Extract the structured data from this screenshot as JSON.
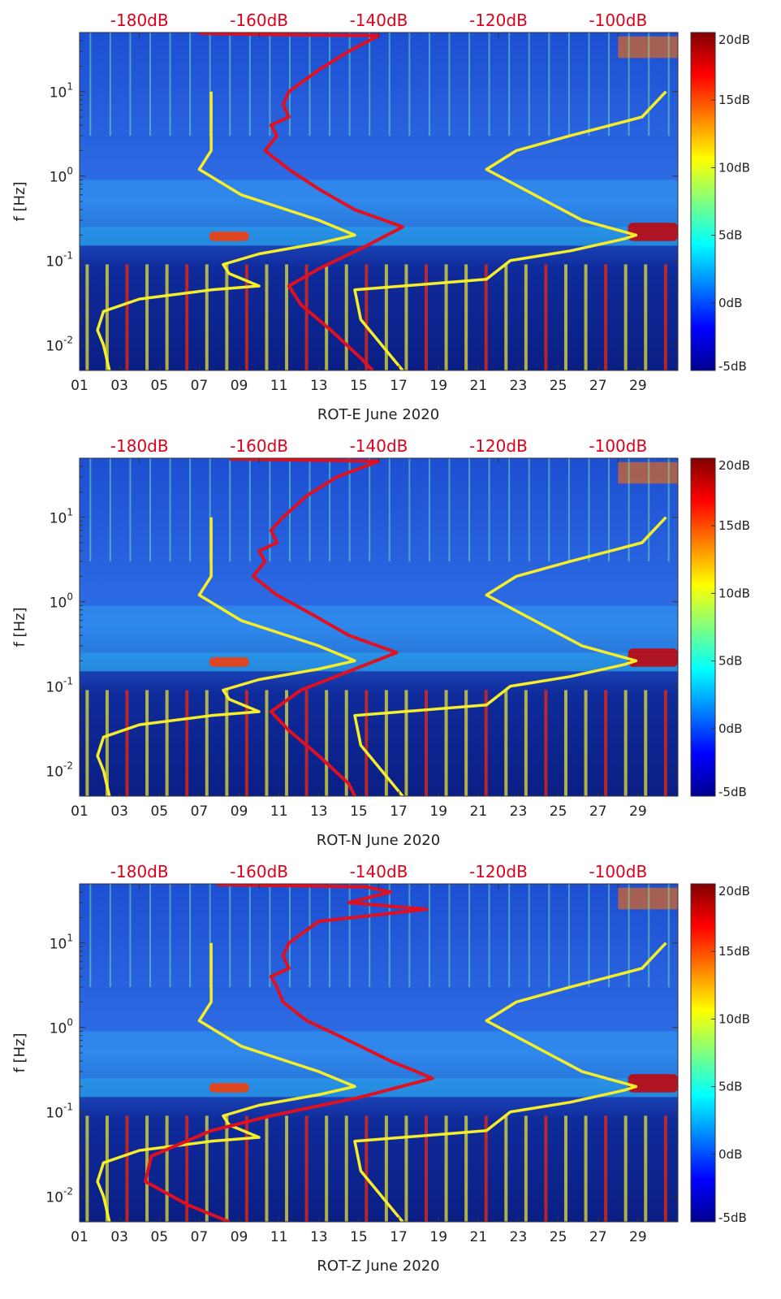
{
  "figure": {
    "colors": {
      "overlay_red": "#e01020",
      "overlay_yellow": "#f6ee2a",
      "background": "#0a2aa8",
      "axis_text": "#222222",
      "top_axis_text": "#e0001a"
    }
  },
  "chart_data": [
    {
      "type": "heatmap",
      "title": "",
      "xlabel": "ROT-E June 2020",
      "ylabel": "f [Hz]",
      "x_ticks": [
        "01",
        "03",
        "05",
        "07",
        "09",
        "11",
        "13",
        "15",
        "17",
        "19",
        "21",
        "23",
        "25",
        "27",
        "29"
      ],
      "x_range_days": [
        1,
        31
      ],
      "y_scale": "log",
      "y_range_hz": [
        0.005,
        50
      ],
      "y_ticks": [
        {
          "base": "10",
          "exp": "-2",
          "value": 0.01
        },
        {
          "base": "10",
          "exp": "-1",
          "value": 0.1
        },
        {
          "base": "10",
          "exp": "0",
          "value": 1
        },
        {
          "base": "10",
          "exp": "1",
          "value": 10
        }
      ],
      "top_axis_labels": [
        "-180dB",
        "-160dB",
        "-140dB",
        "-120dB",
        "-100dB"
      ],
      "top_axis_range_db": [
        -190,
        -90
      ],
      "colorbar": {
        "labels": [
          "20dB",
          "15dB",
          "10dB",
          "5dB",
          "0dB",
          "-5dB"
        ],
        "range_db": [
          -5,
          20
        ]
      },
      "red_curve_db_vs_hz": [
        [
          -170,
          49
        ],
        [
          -165,
          48
        ],
        [
          -155,
          47
        ],
        [
          -140,
          46
        ],
        [
          -145,
          30
        ],
        [
          -150,
          18
        ],
        [
          -155,
          10
        ],
        [
          -156,
          7
        ],
        [
          -155,
          5
        ],
        [
          -158,
          4
        ],
        [
          -157,
          3
        ],
        [
          -159,
          2
        ],
        [
          -155,
          1.2
        ],
        [
          -150,
          0.7
        ],
        [
          -144,
          0.4
        ],
        [
          -136,
          0.25
        ],
        [
          -142,
          0.15
        ],
        [
          -150,
          0.08
        ],
        [
          -155,
          0.05
        ],
        [
          -153,
          0.03
        ],
        [
          -148,
          0.015
        ],
        [
          -143,
          0.007
        ],
        [
          -141,
          0.005
        ]
      ],
      "yellow_curve_low_db_vs_hz": [
        [
          -185,
          0.005
        ],
        [
          -186,
          0.01
        ],
        [
          -187,
          0.015
        ],
        [
          -186,
          0.025
        ],
        [
          -180,
          0.035
        ],
        [
          -168,
          0.045
        ],
        [
          -160,
          0.05
        ],
        [
          -165,
          0.07
        ],
        [
          -166,
          0.09
        ],
        [
          -160,
          0.12
        ],
        [
          -150,
          0.16
        ],
        [
          -144,
          0.2
        ],
        [
          -150,
          0.3
        ],
        [
          -163,
          0.6
        ],
        [
          -170,
          1.2
        ],
        [
          -168,
          2
        ],
        [
          -168,
          4
        ],
        [
          -168,
          10
        ]
      ],
      "yellow_curve_high_db_vs_hz": [
        [
          -136,
          0.005
        ],
        [
          -143,
          0.02
        ],
        [
          -144,
          0.045
        ],
        [
          -122,
          0.06
        ],
        [
          -118,
          0.1
        ],
        [
          -108,
          0.13
        ],
        [
          -99,
          0.18
        ],
        [
          -97,
          0.2
        ],
        [
          -106,
          0.3
        ],
        [
          -122,
          1.2
        ],
        [
          -117,
          2
        ],
        [
          -108,
          3
        ],
        [
          -96,
          5
        ],
        [
          -92,
          10
        ]
      ]
    },
    {
      "type": "heatmap",
      "title": "",
      "xlabel": "ROT-N June 2020",
      "ylabel": "f [Hz]",
      "x_ticks": [
        "01",
        "03",
        "05",
        "07",
        "09",
        "11",
        "13",
        "15",
        "17",
        "19",
        "21",
        "23",
        "25",
        "27",
        "29"
      ],
      "x_range_days": [
        1,
        31
      ],
      "y_scale": "log",
      "y_range_hz": [
        0.005,
        50
      ],
      "y_ticks": [
        {
          "base": "10",
          "exp": "-2",
          "value": 0.01
        },
        {
          "base": "10",
          "exp": "-1",
          "value": 0.1
        },
        {
          "base": "10",
          "exp": "0",
          "value": 1
        },
        {
          "base": "10",
          "exp": "1",
          "value": 10
        }
      ],
      "top_axis_labels": [
        "-180dB",
        "-160dB",
        "-140dB",
        "-120dB",
        "-100dB"
      ],
      "top_axis_range_db": [
        -190,
        -90
      ],
      "colorbar": {
        "labels": [
          "20dB",
          "15dB",
          "10dB",
          "5dB",
          "0dB",
          "-5dB"
        ],
        "range_db": [
          -5,
          20
        ]
      },
      "red_curve_db_vs_hz": [
        [
          -165,
          49
        ],
        [
          -158,
          48
        ],
        [
          -148,
          47
        ],
        [
          -140,
          46
        ],
        [
          -147,
          30
        ],
        [
          -152,
          18
        ],
        [
          -156,
          10
        ],
        [
          -158,
          7
        ],
        [
          -157,
          5
        ],
        [
          -160,
          4
        ],
        [
          -159,
          3
        ],
        [
          -161,
          2
        ],
        [
          -157,
          1.2
        ],
        [
          -151,
          0.7
        ],
        [
          -145,
          0.4
        ],
        [
          -137,
          0.25
        ],
        [
          -145,
          0.15
        ],
        [
          -153,
          0.09
        ],
        [
          -158,
          0.05
        ],
        [
          -155,
          0.03
        ],
        [
          -150,
          0.015
        ],
        [
          -145,
          0.007
        ],
        [
          -144,
          0.005
        ]
      ],
      "yellow_curve_low_db_vs_hz": [
        [
          -185,
          0.005
        ],
        [
          -186,
          0.01
        ],
        [
          -187,
          0.015
        ],
        [
          -186,
          0.025
        ],
        [
          -180,
          0.035
        ],
        [
          -168,
          0.045
        ],
        [
          -160,
          0.05
        ],
        [
          -165,
          0.07
        ],
        [
          -166,
          0.09
        ],
        [
          -160,
          0.12
        ],
        [
          -150,
          0.16
        ],
        [
          -144,
          0.2
        ],
        [
          -150,
          0.3
        ],
        [
          -163,
          0.6
        ],
        [
          -170,
          1.2
        ],
        [
          -168,
          2
        ],
        [
          -168,
          4
        ],
        [
          -168,
          10
        ]
      ],
      "yellow_curve_high_db_vs_hz": [
        [
          -136,
          0.005
        ],
        [
          -143,
          0.02
        ],
        [
          -144,
          0.045
        ],
        [
          -122,
          0.06
        ],
        [
          -118,
          0.1
        ],
        [
          -108,
          0.13
        ],
        [
          -99,
          0.18
        ],
        [
          -97,
          0.2
        ],
        [
          -106,
          0.3
        ],
        [
          -122,
          1.2
        ],
        [
          -117,
          2
        ],
        [
          -108,
          3
        ],
        [
          -96,
          5
        ],
        [
          -92,
          10
        ]
      ]
    },
    {
      "type": "heatmap",
      "title": "",
      "xlabel": "ROT-Z June 2020",
      "ylabel": "f [Hz]",
      "x_ticks": [
        "01",
        "03",
        "05",
        "07",
        "09",
        "11",
        "13",
        "15",
        "17",
        "19",
        "21",
        "23",
        "25",
        "27",
        "29"
      ],
      "x_range_days": [
        1,
        31
      ],
      "y_scale": "log",
      "y_range_hz": [
        0.005,
        50
      ],
      "y_ticks": [
        {
          "base": "10",
          "exp": "-2",
          "value": 0.01
        },
        {
          "base": "10",
          "exp": "-1",
          "value": 0.1
        },
        {
          "base": "10",
          "exp": "0",
          "value": 1
        },
        {
          "base": "10",
          "exp": "1",
          "value": 10
        }
      ],
      "top_axis_labels": [
        "-180dB",
        "-160dB",
        "-140dB",
        "-120dB",
        "-100dB"
      ],
      "top_axis_range_db": [
        -190,
        -90
      ],
      "colorbar": {
        "labels": [
          "20dB",
          "15dB",
          "10dB",
          "5dB",
          "0dB",
          "-5dB"
        ],
        "range_db": [
          -5,
          20
        ]
      },
      "red_curve_db_vs_hz": [
        [
          -167,
          49
        ],
        [
          -160,
          48
        ],
        [
          -150,
          47
        ],
        [
          -142,
          46
        ],
        [
          -138,
          40
        ],
        [
          -145,
          30
        ],
        [
          -132,
          25
        ],
        [
          -150,
          18
        ],
        [
          -155,
          10
        ],
        [
          -156,
          7
        ],
        [
          -155,
          5
        ],
        [
          -158,
          4
        ],
        [
          -157,
          3
        ],
        [
          -156,
          2
        ],
        [
          -152,
          1.2
        ],
        [
          -145,
          0.7
        ],
        [
          -138,
          0.4
        ],
        [
          -131,
          0.25
        ],
        [
          -143,
          0.15
        ],
        [
          -158,
          0.09
        ],
        [
          -168,
          0.06
        ],
        [
          -178,
          0.03
        ],
        [
          -179,
          0.015
        ],
        [
          -172,
          0.008
        ],
        [
          -165,
          0.005
        ]
      ],
      "yellow_curve_low_db_vs_hz": [
        [
          -185,
          0.005
        ],
        [
          -186,
          0.01
        ],
        [
          -187,
          0.015
        ],
        [
          -186,
          0.025
        ],
        [
          -180,
          0.035
        ],
        [
          -168,
          0.045
        ],
        [
          -160,
          0.05
        ],
        [
          -165,
          0.07
        ],
        [
          -166,
          0.09
        ],
        [
          -160,
          0.12
        ],
        [
          -150,
          0.16
        ],
        [
          -144,
          0.2
        ],
        [
          -150,
          0.3
        ],
        [
          -163,
          0.6
        ],
        [
          -170,
          1.2
        ],
        [
          -168,
          2
        ],
        [
          -168,
          4
        ],
        [
          -168,
          10
        ]
      ],
      "yellow_curve_high_db_vs_hz": [
        [
          -136,
          0.005
        ],
        [
          -143,
          0.02
        ],
        [
          -144,
          0.045
        ],
        [
          -122,
          0.06
        ],
        [
          -118,
          0.1
        ],
        [
          -108,
          0.13
        ],
        [
          -99,
          0.18
        ],
        [
          -97,
          0.2
        ],
        [
          -106,
          0.3
        ],
        [
          -122,
          1.2
        ],
        [
          -117,
          2
        ],
        [
          -108,
          3
        ],
        [
          -96,
          5
        ],
        [
          -92,
          10
        ]
      ]
    }
  ]
}
